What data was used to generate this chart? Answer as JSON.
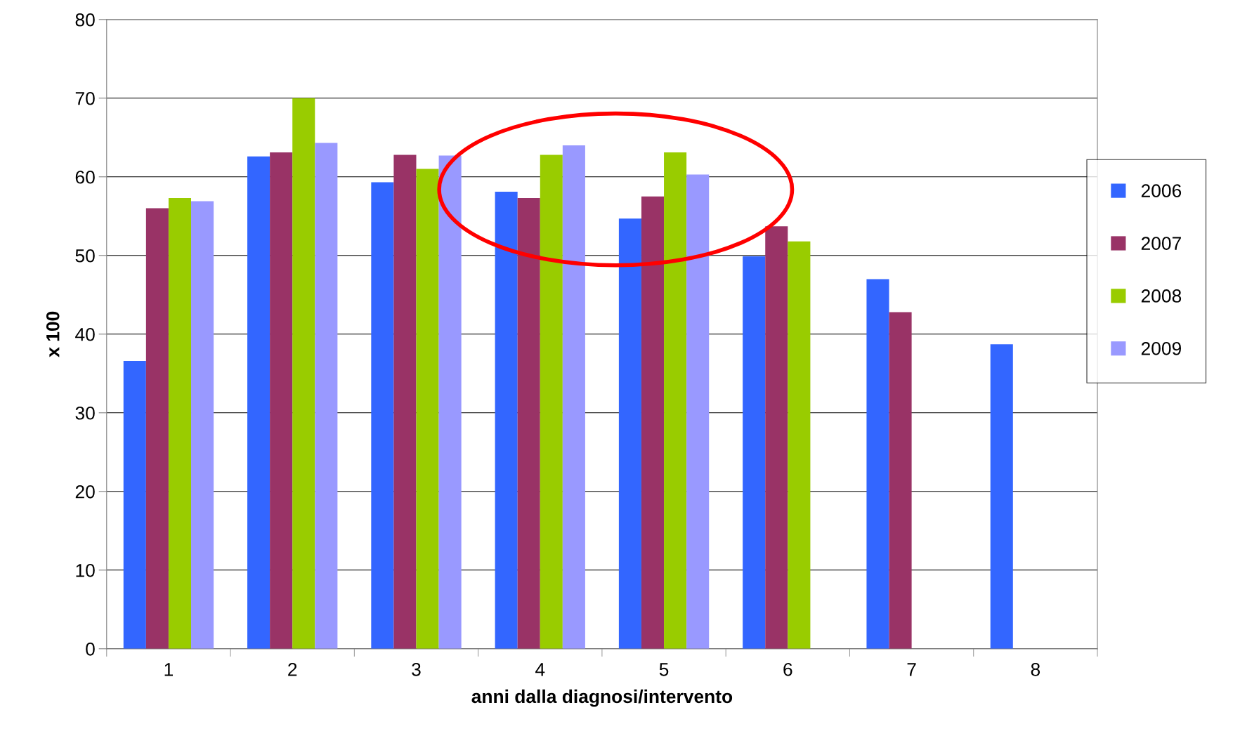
{
  "chart_data": {
    "type": "bar",
    "xlabel": "anni dalla diagnosi/intervento",
    "ylabel": "x 100",
    "categories": [
      "1",
      "2",
      "3",
      "4",
      "5",
      "6",
      "7",
      "8"
    ],
    "series": [
      {
        "name": "2006",
        "color": "#3366ff",
        "values": [
          36.6,
          62.6,
          59.3,
          58.1,
          54.7,
          49.9,
          47.0,
          38.7
        ]
      },
      {
        "name": "2007",
        "color": "#993366",
        "values": [
          56.0,
          63.1,
          62.8,
          57.3,
          57.5,
          53.7,
          42.8,
          null
        ]
      },
      {
        "name": "2008",
        "color": "#99cc00",
        "values": [
          57.3,
          70.0,
          61.0,
          62.8,
          63.1,
          51.8,
          null,
          null
        ]
      },
      {
        "name": "2009",
        "color": "#9999ff",
        "values": [
          56.9,
          64.3,
          62.7,
          64.0,
          60.3,
          null,
          null,
          null
        ]
      }
    ],
    "ylim": [
      0,
      80
    ],
    "yticks": [
      0,
      10,
      20,
      30,
      40,
      50,
      60,
      70,
      80
    ],
    "grid": "y",
    "legend": "right"
  }
}
